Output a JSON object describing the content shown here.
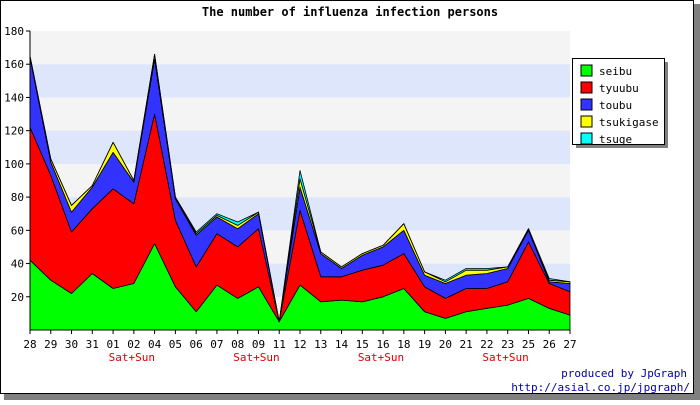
{
  "chart_data": {
    "type": "area",
    "stacked": true,
    "title": "The number of influenza infection persons",
    "categories": [
      "28",
      "29",
      "30",
      "31",
      "01",
      "02",
      "04",
      "05",
      "06",
      "07",
      "08",
      "09",
      "11",
      "12",
      "13",
      "14",
      "15",
      "16",
      "18",
      "19",
      "20",
      "21",
      "22",
      "23",
      "25",
      "26",
      "27"
    ],
    "weekend_labels": [
      {
        "category": "01",
        "text": "Sat+Sun"
      },
      {
        "category": "08",
        "text": "Sat+Sun"
      },
      {
        "category": "15",
        "text": "Sat+Sun"
      },
      {
        "category": "22",
        "text": "Sat+Sun"
      }
    ],
    "ylim": [
      0,
      180
    ],
    "yticks": [
      20,
      40,
      60,
      80,
      100,
      120,
      140,
      160,
      180
    ],
    "grid": true,
    "legend_position": "right",
    "series": [
      {
        "name": "seibu",
        "color": "#00ff00",
        "values": [
          42,
          30,
          22,
          34,
          25,
          28,
          52,
          26,
          11,
          27,
          19,
          26,
          5,
          27,
          17,
          18,
          17,
          20,
          25,
          11,
          7,
          11,
          13,
          15,
          19,
          13,
          9
        ]
      },
      {
        "name": "tyuubu",
        "color": "#ff0000",
        "values": [
          80,
          63,
          37,
          39,
          60,
          48,
          78,
          40,
          27,
          31,
          31,
          35,
          0,
          45,
          15,
          14,
          19,
          19,
          21,
          15,
          12,
          14,
          12,
          14,
          34,
          15,
          14
        ]
      },
      {
        "name": "toubu",
        "color": "#3333ff",
        "values": [
          42,
          8,
          12,
          13,
          22,
          13,
          33,
          13,
          19,
          10,
          11,
          9,
          0,
          14,
          14,
          5,
          9,
          11,
          14,
          7,
          9,
          8,
          9,
          8,
          7,
          1,
          5
        ]
      },
      {
        "name": "tsukigase",
        "color": "#ffff00",
        "values": [
          1,
          2,
          4,
          1,
          6,
          1,
          3,
          1,
          1,
          1,
          2,
          1,
          0,
          5,
          1,
          1,
          1,
          1,
          4,
          2,
          1,
          3,
          2,
          1,
          1,
          1,
          1
        ]
      },
      {
        "name": "tsuge",
        "color": "#00ffff",
        "values": [
          0,
          0,
          0,
          0,
          0,
          0,
          0,
          0,
          1,
          1,
          2,
          0,
          0,
          5,
          0,
          0,
          0,
          0,
          0,
          0,
          1,
          1,
          1,
          0,
          0,
          1,
          0
        ]
      }
    ]
  },
  "footer": {
    "credit": "produced by JpGraph",
    "url": "http://asial.co.jp/jpgraph/"
  }
}
